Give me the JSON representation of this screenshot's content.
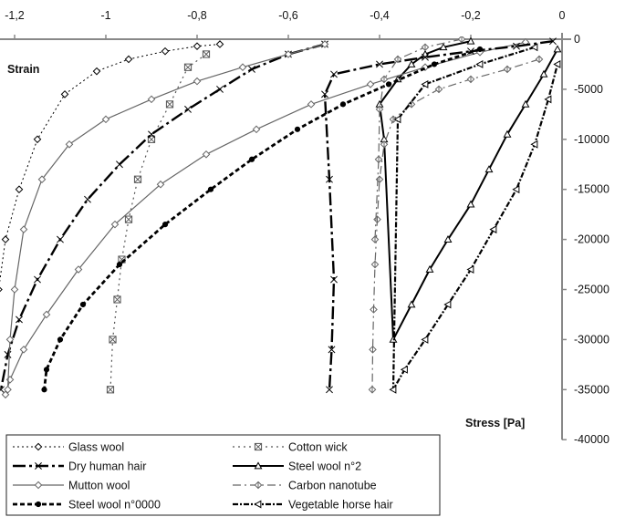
{
  "chart_data": {
    "type": "line",
    "title": "",
    "xlabel": "Strain",
    "ylabel": "Stress [Pa]",
    "xlim": [
      -1.25,
      0
    ],
    "ylim": [
      -40000,
      0
    ],
    "x_axis_position": "top",
    "y_axis_position": "right",
    "x_ticks": [
      -1.2,
      -1,
      -0.8,
      -0.6,
      -0.4,
      -0.2,
      0
    ],
    "x_tick_labels": [
      "-1,2",
      "-1",
      "-0,8",
      "-0,6",
      "-0,4",
      "-0,2",
      "0"
    ],
    "y_ticks": [
      0,
      -5000,
      -10000,
      -15000,
      -20000,
      -25000,
      -30000,
      -35000,
      -40000
    ],
    "y_tick_labels": [
      "0",
      "-5000",
      "-10000",
      "-15000",
      "-20000",
      "-25000",
      "-30000",
      "-35000",
      "-40000"
    ],
    "grid": false,
    "legend_position": "bottom-left",
    "series": [
      {
        "name": "Glass wool",
        "color": "#000000",
        "dash": "2,3",
        "width": 1,
        "marker": "diamond",
        "x": [
          -0.75,
          -0.8,
          -0.87,
          -0.95,
          -1.02,
          -1.09,
          -1.15,
          -1.19,
          -1.22,
          -1.235,
          -1.245,
          -1.25
        ],
        "y": [
          -500,
          -700,
          -1200,
          -2000,
          -3200,
          -5500,
          -10000,
          -15000,
          -20000,
          -25000,
          -30000,
          -35500
        ]
      },
      {
        "name": "Cotton wick",
        "color": "#555555",
        "dash": "2,4",
        "width": 1.2,
        "marker": "boxx",
        "x": [
          -0.78,
          -0.82,
          -0.86,
          -0.9,
          -0.93,
          -0.95,
          -0.965,
          -0.975,
          -0.985,
          -0.99
        ],
        "y": [
          -1500,
          -2800,
          -6500,
          -10000,
          -14000,
          -18000,
          -22000,
          -26000,
          -30000,
          -35000
        ]
      },
      {
        "name": "Dry human hair",
        "color": "#000000",
        "dash": "14,4,3,4",
        "width": 2.4,
        "marker": "x",
        "x": [
          -0.52,
          -0.6,
          -0.68,
          -0.75,
          -0.82,
          -0.9,
          -0.97,
          -1.04,
          -1.1,
          -1.15,
          -1.19,
          -1.215,
          -1.23
        ],
        "y": [
          -500,
          -1500,
          -3000,
          -5000,
          -7000,
          -9500,
          -12500,
          -16000,
          -20000,
          -24000,
          -28000,
          -31500,
          -35000
        ]
      },
      {
        "name": "Steel wool n°2",
        "color": "#000000",
        "dash": "",
        "width": 2,
        "marker": "triangle",
        "x": [
          -0.2,
          -0.26,
          -0.3,
          -0.33,
          -0.36,
          -0.4,
          -0.39,
          -0.37,
          -0.33,
          -0.29,
          -0.25,
          -0.2,
          -0.16,
          -0.12,
          -0.08,
          -0.04,
          -0.01
        ],
        "y": [
          -200,
          -800,
          -1500,
          -2500,
          -4000,
          -6500,
          -10000,
          -30000,
          -26500,
          -23000,
          -20000,
          -16500,
          -13000,
          -9500,
          -6500,
          -3500,
          -1000
        ]
      },
      {
        "name": "Mutton wool",
        "color": "#666666",
        "dash": "",
        "width": 1.2,
        "marker": "diamond",
        "x": [
          -0.08,
          -0.18,
          -0.3,
          -0.42,
          -0.55,
          -0.67,
          -0.78,
          -0.88,
          -0.98,
          -1.06,
          -1.13,
          -1.18,
          -1.21,
          -1.22
        ],
        "y": [
          -300,
          -1300,
          -2800,
          -4500,
          -6500,
          -9000,
          -11500,
          -14500,
          -18500,
          -23000,
          -27500,
          -31000,
          -34000,
          -35500
        ]
      },
      {
        "name": "Carbon nanotube",
        "color": "#666666",
        "dash": "9,4,2,4",
        "width": 1.2,
        "marker": "diamondv",
        "x": [
          -0.05,
          -0.12,
          -0.2,
          -0.27,
          -0.33,
          -0.37,
          -0.39,
          -0.4,
          -0.405,
          -0.41,
          -0.413,
          -0.415,
          -0.416
        ],
        "y": [
          -2000,
          -3000,
          -4000,
          -5000,
          -6500,
          -8000,
          -10500,
          -14000,
          -18000,
          -22500,
          -27000,
          -31000,
          -35000
        ]
      },
      {
        "name": "Steel wool n°0000",
        "color": "#000000",
        "dash": "5,3",
        "width": 2.8,
        "marker": "circle",
        "x": [
          -0.18,
          -0.28,
          -0.38,
          -0.48,
          -0.58,
          -0.68,
          -0.77,
          -0.87,
          -0.97,
          -1.05,
          -1.1,
          -1.13,
          -1.135
        ],
        "y": [
          -1000,
          -2500,
          -4500,
          -6500,
          -9000,
          -12000,
          -15000,
          -18500,
          -22500,
          -26500,
          -30000,
          -33000,
          -35000
        ]
      },
      {
        "name": "Vegetable horse hair",
        "color": "#000000",
        "dash": "6,2,2,2",
        "width": 2.2,
        "marker": "triangleleft",
        "x": [
          -0.06,
          -0.18,
          -0.3,
          -0.36,
          -0.37,
          -0.345,
          -0.3,
          -0.25,
          -0.2,
          -0.15,
          -0.1,
          -0.06,
          -0.03,
          -0.01
        ],
        "y": [
          -800,
          -2500,
          -4500,
          -8000,
          -35000,
          -33000,
          -30000,
          -26500,
          -23000,
          -19000,
          -15000,
          -10500,
          -6000,
          -2500
        ]
      }
    ],
    "extra_curves": [
      {
        "of": "Dry human hair",
        "x": [
          -0.02,
          -0.1,
          -0.2,
          -0.3,
          -0.4,
          -0.5,
          -0.52,
          -0.51,
          -0.5,
          -0.505,
          -0.51
        ],
        "y": [
          -200,
          -700,
          -1200,
          -1800,
          -2500,
          -3500,
          -5500,
          -14000,
          -24000,
          -31000,
          -35000
        ]
      },
      {
        "of": "Mutton wool",
        "x": [
          -0.52,
          -0.6,
          -0.7,
          -0.8,
          -0.9,
          -1.0,
          -1.08,
          -1.14,
          -1.18,
          -1.2,
          -1.21,
          -1.215
        ],
        "y": [
          -500,
          -1500,
          -2800,
          -4200,
          -6000,
          -8000,
          -10500,
          -14000,
          -19000,
          -25000,
          -30000,
          -35000
        ]
      },
      {
        "of": "Carbon nanotube",
        "x": [
          -0.22,
          -0.3,
          -0.36,
          -0.39,
          -0.4,
          -0.402,
          -0.41
        ],
        "y": [
          0,
          -800,
          -2000,
          -4000,
          -7000,
          -12000,
          -20000
        ]
      }
    ]
  }
}
